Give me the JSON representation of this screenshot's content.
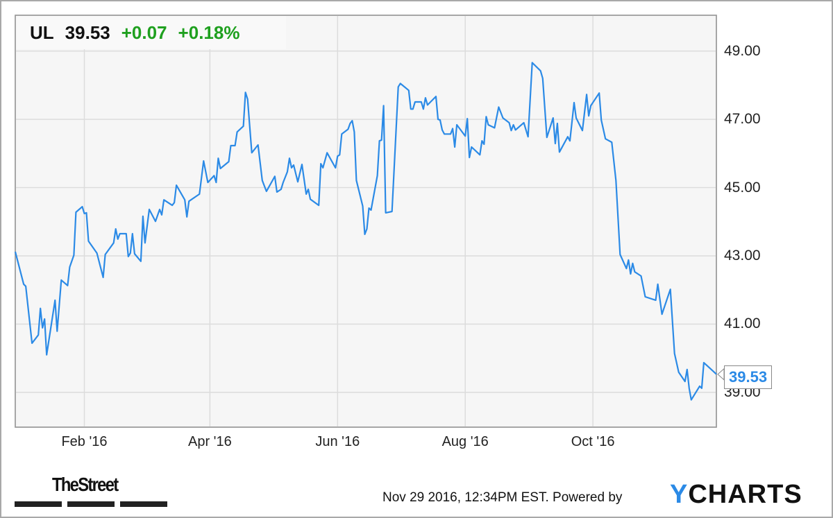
{
  "header": {
    "symbol": "UL",
    "price": "39.53",
    "change": "+0.07",
    "change_pct": "+0.18%",
    "up_color": "#1fa01f"
  },
  "last_value_label": "39.53",
  "footer": {
    "timestamp": "Nov 29 2016, 12:34PM EST.",
    "powered_by": "Powered by",
    "brand_y": "Y",
    "brand_rest": "CHARTS",
    "publisher": "TheStreet"
  },
  "chart_data": {
    "type": "line",
    "title": "",
    "xlabel": "",
    "ylabel": "",
    "xlim": [
      "2015-12-30",
      "2016-11-29"
    ],
    "ylim": [
      37.98,
      50.05
    ],
    "y_axis_position": "right",
    "grid": true,
    "line_color": "#2b8ae6",
    "x_ticks": [
      {
        "date": "2016-02-01",
        "label": "Feb '16"
      },
      {
        "date": "2016-04-01",
        "label": "Apr '16"
      },
      {
        "date": "2016-06-01",
        "label": "Jun '16"
      },
      {
        "date": "2016-08-01",
        "label": "Aug '16"
      },
      {
        "date": "2016-10-01",
        "label": "Oct '16"
      }
    ],
    "y_ticks": [
      {
        "value": 39,
        "label": "39.00"
      },
      {
        "value": 41,
        "label": "41.00"
      },
      {
        "value": 43,
        "label": "43.00"
      },
      {
        "value": 45,
        "label": "45.00"
      },
      {
        "value": 47,
        "label": "47.00"
      },
      {
        "value": 49,
        "label": "49.00"
      }
    ],
    "series": [
      {
        "points": [
          [
            "2015-12-30",
            43.12
          ],
          [
            "2016-01-03",
            42.17
          ],
          [
            "2016-01-04",
            42.11
          ],
          [
            "2016-01-07",
            40.44
          ],
          [
            "2016-01-10",
            40.68
          ],
          [
            "2016-01-11",
            41.46
          ],
          [
            "2016-01-12",
            40.89
          ],
          [
            "2016-01-13",
            41.15
          ],
          [
            "2016-01-14",
            40.1
          ],
          [
            "2016-01-18",
            41.7
          ],
          [
            "2016-01-19",
            40.79
          ],
          [
            "2016-01-21",
            42.29
          ],
          [
            "2016-01-24",
            42.13
          ],
          [
            "2016-01-25",
            42.67
          ],
          [
            "2016-01-27",
            43.02
          ],
          [
            "2016-01-28",
            44.28
          ],
          [
            "2016-01-31",
            44.44
          ],
          [
            "2016-02-01",
            44.24
          ],
          [
            "2016-02-02",
            44.26
          ],
          [
            "2016-02-03",
            43.43
          ],
          [
            "2016-02-07",
            43.08
          ],
          [
            "2016-02-10",
            42.37
          ],
          [
            "2016-02-11",
            43.04
          ],
          [
            "2016-02-15",
            43.38
          ],
          [
            "2016-02-16",
            43.79
          ],
          [
            "2016-02-17",
            43.49
          ],
          [
            "2016-02-18",
            43.65
          ],
          [
            "2016-02-21",
            43.65
          ],
          [
            "2016-02-22",
            42.98
          ],
          [
            "2016-02-23",
            43.08
          ],
          [
            "2016-02-24",
            43.65
          ],
          [
            "2016-02-25",
            43.06
          ],
          [
            "2016-02-28",
            42.84
          ],
          [
            "2016-02-29",
            44.16
          ],
          [
            "2016-03-01",
            43.38
          ],
          [
            "2016-03-03",
            44.36
          ],
          [
            "2016-03-06",
            44.01
          ],
          [
            "2016-03-08",
            44.36
          ],
          [
            "2016-03-09",
            44.2
          ],
          [
            "2016-03-10",
            44.64
          ],
          [
            "2016-03-14",
            44.48
          ],
          [
            "2016-03-15",
            44.56
          ],
          [
            "2016-03-16",
            45.07
          ],
          [
            "2016-03-20",
            44.64
          ],
          [
            "2016-03-21",
            44.14
          ],
          [
            "2016-03-22",
            44.6
          ],
          [
            "2016-03-27",
            44.81
          ],
          [
            "2016-03-29",
            45.78
          ],
          [
            "2016-03-31",
            45.15
          ],
          [
            "2016-04-03",
            45.35
          ],
          [
            "2016-04-04",
            45.15
          ],
          [
            "2016-04-05",
            45.86
          ],
          [
            "2016-04-06",
            45.56
          ],
          [
            "2016-04-10",
            45.76
          ],
          [
            "2016-04-11",
            46.23
          ],
          [
            "2016-04-13",
            46.23
          ],
          [
            "2016-04-14",
            46.63
          ],
          [
            "2016-04-17",
            46.8
          ],
          [
            "2016-04-18",
            47.79
          ],
          [
            "2016-04-19",
            47.59
          ],
          [
            "2016-04-21",
            46.02
          ],
          [
            "2016-04-24",
            46.25
          ],
          [
            "2016-04-26",
            45.21
          ],
          [
            "2016-04-28",
            44.89
          ],
          [
            "2016-05-02",
            45.33
          ],
          [
            "2016-05-03",
            44.87
          ],
          [
            "2016-05-05",
            44.95
          ],
          [
            "2016-05-06",
            45.15
          ],
          [
            "2016-05-08",
            45.46
          ],
          [
            "2016-05-09",
            45.86
          ],
          [
            "2016-05-10",
            45.58
          ],
          [
            "2016-05-11",
            45.66
          ],
          [
            "2016-05-13",
            45.17
          ],
          [
            "2016-05-15",
            45.68
          ],
          [
            "2016-05-17",
            44.81
          ],
          [
            "2016-05-18",
            44.95
          ],
          [
            "2016-05-19",
            44.66
          ],
          [
            "2016-05-23",
            44.48
          ],
          [
            "2016-05-24",
            45.7
          ],
          [
            "2016-05-25",
            45.58
          ],
          [
            "2016-05-27",
            46.02
          ],
          [
            "2016-05-31",
            45.58
          ],
          [
            "2016-06-01",
            45.92
          ],
          [
            "2016-06-02",
            45.96
          ],
          [
            "2016-06-03",
            46.57
          ],
          [
            "2016-06-06",
            46.71
          ],
          [
            "2016-06-07",
            46.88
          ],
          [
            "2016-06-08",
            46.96
          ],
          [
            "2016-06-09",
            46.63
          ],
          [
            "2016-06-10",
            45.21
          ],
          [
            "2016-06-13",
            44.46
          ],
          [
            "2016-06-14",
            43.63
          ],
          [
            "2016-06-15",
            43.79
          ],
          [
            "2016-06-16",
            44.4
          ],
          [
            "2016-06-17",
            44.34
          ],
          [
            "2016-06-20",
            45.35
          ],
          [
            "2016-06-21",
            46.37
          ],
          [
            "2016-06-22",
            46.39
          ],
          [
            "2016-06-23",
            47.4
          ],
          [
            "2016-06-24",
            44.26
          ],
          [
            "2016-06-27",
            44.3
          ],
          [
            "2016-06-30",
            47.95
          ],
          [
            "2016-07-01",
            48.05
          ],
          [
            "2016-07-05",
            47.85
          ],
          [
            "2016-07-06",
            47.3
          ],
          [
            "2016-07-07",
            47.3
          ],
          [
            "2016-07-08",
            47.51
          ],
          [
            "2016-07-11",
            47.51
          ],
          [
            "2016-07-12",
            47.3
          ],
          [
            "2016-07-13",
            47.63
          ],
          [
            "2016-07-14",
            47.42
          ],
          [
            "2016-07-18",
            47.67
          ],
          [
            "2016-07-19",
            47.0
          ],
          [
            "2016-07-20",
            46.98
          ],
          [
            "2016-07-21",
            46.69
          ],
          [
            "2016-07-22",
            46.57
          ],
          [
            "2016-07-25",
            46.57
          ],
          [
            "2016-07-26",
            46.73
          ],
          [
            "2016-07-27",
            46.19
          ],
          [
            "2016-07-28",
            46.84
          ],
          [
            "2016-08-01",
            46.51
          ],
          [
            "2016-08-02",
            47.02
          ],
          [
            "2016-08-03",
            45.88
          ],
          [
            "2016-08-04",
            46.19
          ],
          [
            "2016-08-08",
            45.96
          ],
          [
            "2016-08-09",
            46.37
          ],
          [
            "2016-08-10",
            46.27
          ],
          [
            "2016-08-11",
            47.08
          ],
          [
            "2016-08-12",
            46.84
          ],
          [
            "2016-08-15",
            46.75
          ],
          [
            "2016-08-17",
            47.36
          ],
          [
            "2016-08-19",
            47.04
          ],
          [
            "2016-08-22",
            46.9
          ],
          [
            "2016-08-23",
            46.67
          ],
          [
            "2016-08-24",
            46.84
          ],
          [
            "2016-08-25",
            46.69
          ],
          [
            "2016-08-29",
            46.9
          ],
          [
            "2016-08-31",
            46.49
          ],
          [
            "2016-09-02",
            48.66
          ],
          [
            "2016-09-06",
            48.42
          ],
          [
            "2016-09-07",
            48.2
          ],
          [
            "2016-09-09",
            46.47
          ],
          [
            "2016-09-12",
            47.04
          ],
          [
            "2016-09-13",
            46.29
          ],
          [
            "2016-09-14",
            46.88
          ],
          [
            "2016-09-15",
            46.04
          ],
          [
            "2016-09-19",
            46.49
          ],
          [
            "2016-09-20",
            46.37
          ],
          [
            "2016-09-22",
            47.49
          ],
          [
            "2016-09-23",
            47.04
          ],
          [
            "2016-09-26",
            46.67
          ],
          [
            "2016-09-28",
            47.73
          ],
          [
            "2016-09-29",
            47.1
          ],
          [
            "2016-09-30",
            47.4
          ],
          [
            "2016-10-04",
            47.77
          ],
          [
            "2016-10-05",
            46.98
          ],
          [
            "2016-10-07",
            46.43
          ],
          [
            "2016-10-10",
            46.33
          ],
          [
            "2016-10-12",
            45.21
          ],
          [
            "2016-10-14",
            43.04
          ],
          [
            "2016-10-17",
            42.63
          ],
          [
            "2016-10-18",
            42.88
          ],
          [
            "2016-10-19",
            42.47
          ],
          [
            "2016-10-20",
            42.78
          ],
          [
            "2016-10-21",
            42.53
          ],
          [
            "2016-10-24",
            42.41
          ],
          [
            "2016-10-26",
            41.8
          ],
          [
            "2016-10-31",
            41.7
          ],
          [
            "2016-11-01",
            42.17
          ],
          [
            "2016-11-03",
            41.29
          ],
          [
            "2016-11-07",
            42.02
          ],
          [
            "2016-11-09",
            40.14
          ],
          [
            "2016-11-11",
            39.59
          ],
          [
            "2016-11-14",
            39.32
          ],
          [
            "2016-11-15",
            39.67
          ],
          [
            "2016-11-16",
            39.12
          ],
          [
            "2016-11-17",
            38.78
          ],
          [
            "2016-11-21",
            39.18
          ],
          [
            "2016-11-22",
            39.12
          ],
          [
            "2016-11-23",
            39.87
          ],
          [
            "2016-11-28",
            39.59
          ],
          [
            "2016-11-29",
            39.53
          ]
        ]
      }
    ]
  }
}
